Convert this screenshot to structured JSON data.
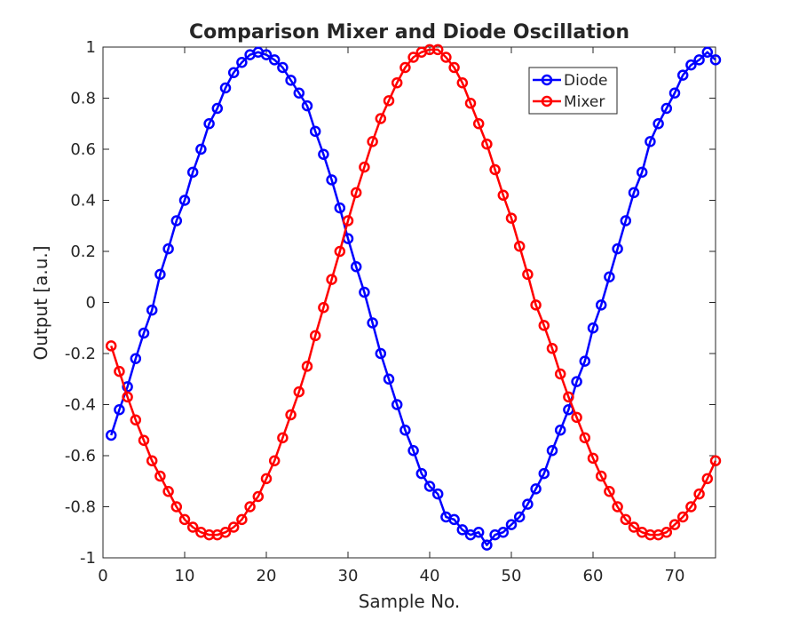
{
  "chart_data": {
    "type": "line",
    "title": "Comparison Mixer and Diode Oscillation",
    "xlabel": "Sample No.",
    "ylabel": "Output [a.u.]",
    "xlim": [
      0,
      75
    ],
    "ylim": [
      -1,
      1
    ],
    "xticks": [
      0,
      10,
      20,
      30,
      40,
      50,
      60,
      70
    ],
    "xtick_labels": [
      "0",
      "10",
      "20",
      "30",
      "40",
      "50",
      "60",
      "70"
    ],
    "yticks": [
      -1,
      -0.8,
      -0.6,
      -0.4,
      -0.2,
      0,
      0.2,
      0.4,
      0.6,
      0.8,
      1
    ],
    "ytick_labels": [
      "-1",
      "-0.8",
      "-0.6",
      "-0.4",
      "-0.2",
      "0",
      "0.2",
      "0.4",
      "0.6",
      "0.8",
      "1"
    ],
    "grid": false,
    "legend_position": "top-right",
    "x": [
      1,
      2,
      3,
      4,
      5,
      6,
      7,
      8,
      9,
      10,
      11,
      12,
      13,
      14,
      15,
      16,
      17,
      18,
      19,
      20,
      21,
      22,
      23,
      24,
      25,
      26,
      27,
      28,
      29,
      30,
      31,
      32,
      33,
      34,
      35,
      36,
      37,
      38,
      39,
      40,
      41,
      42,
      43,
      44,
      45,
      46,
      47,
      48,
      49,
      50,
      51,
      52,
      53,
      54,
      55,
      56,
      57,
      58,
      59,
      60,
      61,
      62,
      63,
      64,
      65,
      66,
      67,
      68,
      69,
      70,
      71,
      72,
      73,
      74,
      75
    ],
    "series": [
      {
        "name": "Diode",
        "color": "#0000ff",
        "marker": "circle",
        "values": [
          -0.52,
          -0.42,
          -0.33,
          -0.22,
          -0.12,
          -0.03,
          0.11,
          0.21,
          0.32,
          0.4,
          0.51,
          0.6,
          0.7,
          0.76,
          0.84,
          0.9,
          0.94,
          0.97,
          0.98,
          0.97,
          0.95,
          0.92,
          0.87,
          0.82,
          0.77,
          0.67,
          0.58,
          0.48,
          0.37,
          0.25,
          0.14,
          0.04,
          -0.08,
          -0.2,
          -0.3,
          -0.4,
          -0.5,
          -0.58,
          -0.67,
          -0.72,
          -0.75,
          -0.84,
          -0.85,
          -0.89,
          -0.91,
          -0.9,
          -0.95,
          -0.91,
          -0.9,
          -0.87,
          -0.84,
          -0.79,
          -0.73,
          -0.67,
          -0.58,
          -0.5,
          -0.42,
          -0.31,
          -0.23,
          -0.1,
          -0.01,
          0.1,
          0.21,
          0.32,
          0.43,
          0.51,
          0.63,
          0.7,
          0.76,
          0.82,
          0.89,
          0.93,
          0.95,
          0.98,
          0.95
        ]
      },
      {
        "name": "Mixer",
        "color": "#ff0000",
        "marker": "circle",
        "values": [
          -0.17,
          -0.27,
          -0.37,
          -0.46,
          -0.54,
          -0.62,
          -0.68,
          -0.74,
          -0.8,
          -0.85,
          -0.88,
          -0.9,
          -0.91,
          -0.91,
          -0.9,
          -0.88,
          -0.85,
          -0.8,
          -0.76,
          -0.69,
          -0.62,
          -0.53,
          -0.44,
          -0.35,
          -0.25,
          -0.13,
          -0.02,
          0.09,
          0.2,
          0.32,
          0.43,
          0.53,
          0.63,
          0.72,
          0.79,
          0.86,
          0.92,
          0.96,
          0.98,
          0.99,
          0.99,
          0.96,
          0.92,
          0.86,
          0.78,
          0.7,
          0.62,
          0.52,
          0.42,
          0.33,
          0.22,
          0.11,
          -0.01,
          -0.09,
          -0.18,
          -0.28,
          -0.37,
          -0.45,
          -0.53,
          -0.61,
          -0.68,
          -0.74,
          -0.8,
          -0.85,
          -0.88,
          -0.9,
          -0.91,
          -0.91,
          -0.9,
          -0.87,
          -0.84,
          -0.8,
          -0.75,
          -0.69,
          -0.62
        ]
      }
    ]
  }
}
